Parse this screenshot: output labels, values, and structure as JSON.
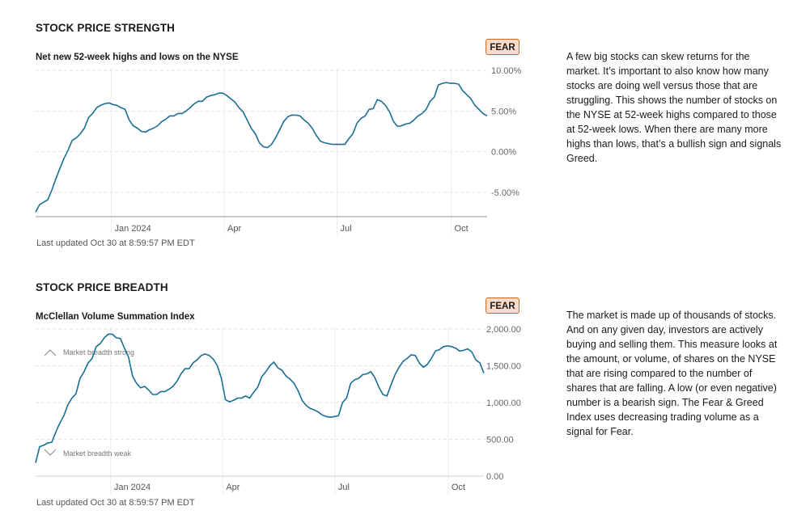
{
  "sections": [
    {
      "title": "STOCK PRICE STRENGTH",
      "subtitle": "Net new 52-week highs and lows on the NYSE",
      "badge": "FEAR",
      "description": "A few big stocks can skew returns for the market. It’s important to also know how many stocks are doing well versus those that are struggling. This shows the number of stocks on the NYSE at 52-week highs compared to those at 52-week lows. When there are many more highs than lows, that’s a bullish sign and signals Greed.",
      "updated": "Last updated Oct 30 at 8:59:57 PM EDT"
    },
    {
      "title": "STOCK PRICE BREADTH",
      "subtitle": "McClellan Volume Summation Index",
      "badge": "FEAR",
      "description": "The market is made up of thousands of stocks. And on any given day, investors are actively buying and selling them. This measure looks at the amount, or volume, of shares on the NYSE that are rising compared to the number of shares that are falling. A low (or even negative) number is a bearish sign. The Fear & Greed Index uses decreasing trading volume as a signal for Fear.",
      "updated": "Last updated Oct 30 at 8:59:57 PM EDT"
    }
  ],
  "colors": {
    "line": "#1a6e96",
    "badge_bg": "#fbdccb",
    "badge_border": "#d2691e",
    "grid": "#e2e2e2"
  },
  "chart_data": [
    {
      "type": "line",
      "title": "Net new 52-week highs and lows on the NYSE",
      "xlabel": "",
      "ylabel": "",
      "x_range_days": [
        -61,
        303
      ],
      "x_ticks": [
        {
          "label": "Jan 2024",
          "day": 0
        },
        {
          "label": "Apr",
          "day": 91
        },
        {
          "label": "Jul",
          "day": 182
        },
        {
          "label": "Oct",
          "day": 274
        }
      ],
      "y_ticks": [
        {
          "label": "10.00%",
          "value": 10
        },
        {
          "label": "5.00%",
          "value": 5
        },
        {
          "label": "0.00%",
          "value": 0
        },
        {
          "label": "-5.00%",
          "value": -5
        }
      ],
      "ylim": [
        -8,
        10
      ],
      "grid": true,
      "series": [
        {
          "name": "Net new 52-week highs and lows",
          "values": [
            -7.4,
            -6.5,
            -6.2,
            -5.9,
            -4.7,
            -3.3,
            -2.0,
            -0.8,
            0.2,
            1.4,
            1.7,
            2.2,
            2.9,
            4.2,
            4.7,
            5.4,
            5.7,
            5.9,
            6.0,
            5.8,
            5.7,
            5.4,
            5.2,
            3.9,
            3.2,
            2.9,
            2.5,
            2.4,
            2.7,
            2.9,
            3.2,
            3.7,
            4.0,
            4.4,
            4.4,
            4.7,
            4.7,
            5.0,
            5.4,
            5.9,
            6.2,
            6.2,
            6.7,
            6.9,
            7.0,
            7.2,
            7.2,
            6.9,
            6.5,
            6.1,
            5.4,
            4.9,
            3.9,
            2.9,
            2.2,
            1.1,
            0.6,
            0.5,
            0.9,
            1.7,
            2.7,
            3.7,
            4.3,
            4.5,
            4.5,
            4.4,
            3.9,
            3.5,
            2.9,
            2.0,
            1.3,
            1.1,
            1.0,
            0.9,
            0.9,
            0.9,
            0.9,
            1.6,
            2.2,
            3.5,
            4.1,
            4.4,
            5.2,
            5.3,
            6.4,
            6.2,
            5.7,
            4.9,
            3.7,
            3.1,
            3.2,
            3.4,
            3.5,
            3.9,
            4.4,
            4.7,
            5.2,
            6.2,
            6.7,
            8.2,
            8.4,
            8.5,
            8.4,
            8.4,
            8.3,
            7.5,
            7.0,
            6.5,
            5.7,
            5.2,
            4.7,
            4.4
          ]
        }
      ]
    },
    {
      "type": "line",
      "title": "McClellan Volume Summation Index",
      "xlabel": "",
      "ylabel": "",
      "x_range_days": [
        -61,
        303
      ],
      "x_ticks": [
        {
          "label": "Jan 2024",
          "day": 0
        },
        {
          "label": "Apr",
          "day": 91
        },
        {
          "label": "Jul",
          "day": 182
        },
        {
          "label": "Oct",
          "day": 274
        }
      ],
      "y_ticks": [
        {
          "label": "2,000.00",
          "value": 2000
        },
        {
          "label": "1,500.00",
          "value": 1500
        },
        {
          "label": "1,000.00",
          "value": 1000
        },
        {
          "label": "500.00",
          "value": 500
        },
        {
          "label": "0.00",
          "value": 0
        }
      ],
      "ylim": [
        0,
        2000
      ],
      "grid": true,
      "annotations": [
        {
          "text": "Market breadth strong",
          "direction": "up"
        },
        {
          "text": "Market breadth weak",
          "direction": "down"
        }
      ],
      "series": [
        {
          "name": "McClellan Volume Summation Index",
          "values": [
            180,
            400,
            420,
            450,
            460,
            600,
            720,
            820,
            970,
            1060,
            1120,
            1330,
            1420,
            1540,
            1600,
            1760,
            1800,
            1880,
            1930,
            1930,
            1880,
            1870,
            1740,
            1620,
            1360,
            1260,
            1200,
            1220,
            1170,
            1110,
            1110,
            1150,
            1150,
            1180,
            1220,
            1290,
            1390,
            1460,
            1460,
            1540,
            1580,
            1640,
            1660,
            1640,
            1590,
            1500,
            1330,
            1040,
            1010,
            1030,
            1060,
            1060,
            1090,
            1060,
            1140,
            1210,
            1350,
            1420,
            1500,
            1550,
            1470,
            1440,
            1360,
            1320,
            1260,
            1160,
            1030,
            960,
            920,
            900,
            870,
            830,
            810,
            800,
            810,
            820,
            1000,
            1060,
            1260,
            1310,
            1330,
            1380,
            1390,
            1420,
            1340,
            1210,
            1110,
            1090,
            1240,
            1380,
            1480,
            1560,
            1600,
            1650,
            1640,
            1540,
            1480,
            1520,
            1600,
            1700,
            1720,
            1760,
            1770,
            1760,
            1740,
            1700,
            1710,
            1730,
            1690,
            1580,
            1540,
            1400
          ]
        }
      ]
    }
  ]
}
